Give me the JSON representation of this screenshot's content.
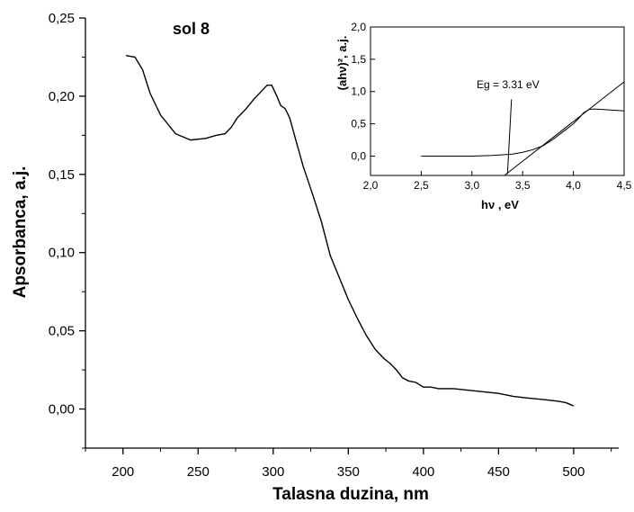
{
  "chart_data": [
    {
      "type": "line",
      "title": "",
      "annotation": "sol 8",
      "xlabel": "Talasna duzina, nm",
      "ylabel": "Apsorbanca, a.j.",
      "xlim": [
        175,
        530
      ],
      "ylim": [
        -0.025,
        0.25
      ],
      "xticks": [
        "200",
        "250",
        "300",
        "350",
        "400",
        "450",
        "500"
      ],
      "yticks": [
        "0,00",
        "0,05",
        "0,10",
        "0,15",
        "0,20",
        "0,25"
      ],
      "xtick_values": [
        200,
        250,
        300,
        350,
        400,
        450,
        500
      ],
      "ytick_values": [
        0,
        0.05,
        0.1,
        0.15,
        0.2,
        0.25
      ],
      "series": [
        {
          "x": [
            202,
            208,
            213,
            218,
            225,
            235,
            245,
            255,
            262,
            268,
            272,
            276,
            282,
            287,
            292,
            296,
            299,
            302,
            305,
            308,
            311,
            315,
            320,
            326,
            332,
            338,
            344,
            350,
            356,
            362,
            368,
            374,
            378,
            382,
            386,
            390,
            395,
            400,
            405,
            410,
            420,
            430,
            440,
            450,
            460,
            470,
            480,
            490,
            495,
            500
          ],
          "y": [
            0.226,
            0.225,
            0.217,
            0.202,
            0.188,
            0.176,
            0.172,
            0.173,
            0.175,
            0.176,
            0.18,
            0.186,
            0.192,
            0.198,
            0.203,
            0.207,
            0.207,
            0.201,
            0.194,
            0.192,
            0.186,
            0.172,
            0.155,
            0.138,
            0.12,
            0.098,
            0.084,
            0.07,
            0.058,
            0.047,
            0.038,
            0.032,
            0.029,
            0.025,
            0.02,
            0.018,
            0.017,
            0.014,
            0.014,
            0.013,
            0.013,
            0.012,
            0.011,
            0.01,
            0.008,
            0.007,
            0.006,
            0.005,
            0.004,
            0.002
          ]
        }
      ]
    },
    {
      "type": "line",
      "title": "",
      "xlabel": "hν , eV",
      "ylabel": "(ahν)², a.j.",
      "xlim": [
        2.0,
        4.5
      ],
      "ylim": [
        -0.3,
        2.0
      ],
      "xticks": [
        "2,0",
        "2,5",
        "3,0",
        "3,5",
        "4,0",
        "4,5"
      ],
      "yticks": [
        "0,0",
        "0,5",
        "1,0",
        "1,5",
        "2,0"
      ],
      "xtick_values": [
        2.0,
        2.5,
        3.0,
        3.5,
        4.0,
        4.5
      ],
      "ytick_values": [
        0.0,
        0.5,
        1.0,
        1.5,
        2.0
      ],
      "annotation": "Eg = 3.31 eV",
      "series": [
        {
          "x": [
            2.5,
            2.8,
            3.0,
            3.2,
            3.4,
            3.5,
            3.6,
            3.7,
            3.8,
            3.9,
            4.0,
            4.05,
            4.1,
            4.15,
            4.2,
            4.3,
            4.4,
            4.5
          ],
          "y": [
            0.0,
            0.0,
            0.0,
            0.01,
            0.03,
            0.06,
            0.1,
            0.16,
            0.26,
            0.38,
            0.5,
            0.58,
            0.67,
            0.72,
            0.73,
            0.72,
            0.71,
            0.7
          ]
        }
      ],
      "tangent_line": {
        "x": [
          3.32,
          4.5
        ],
        "y": [
          -0.3,
          1.15
        ]
      },
      "pointer_line": {
        "x": [
          3.39,
          3.35
        ],
        "y": [
          0.88,
          -0.28
        ]
      }
    }
  ]
}
